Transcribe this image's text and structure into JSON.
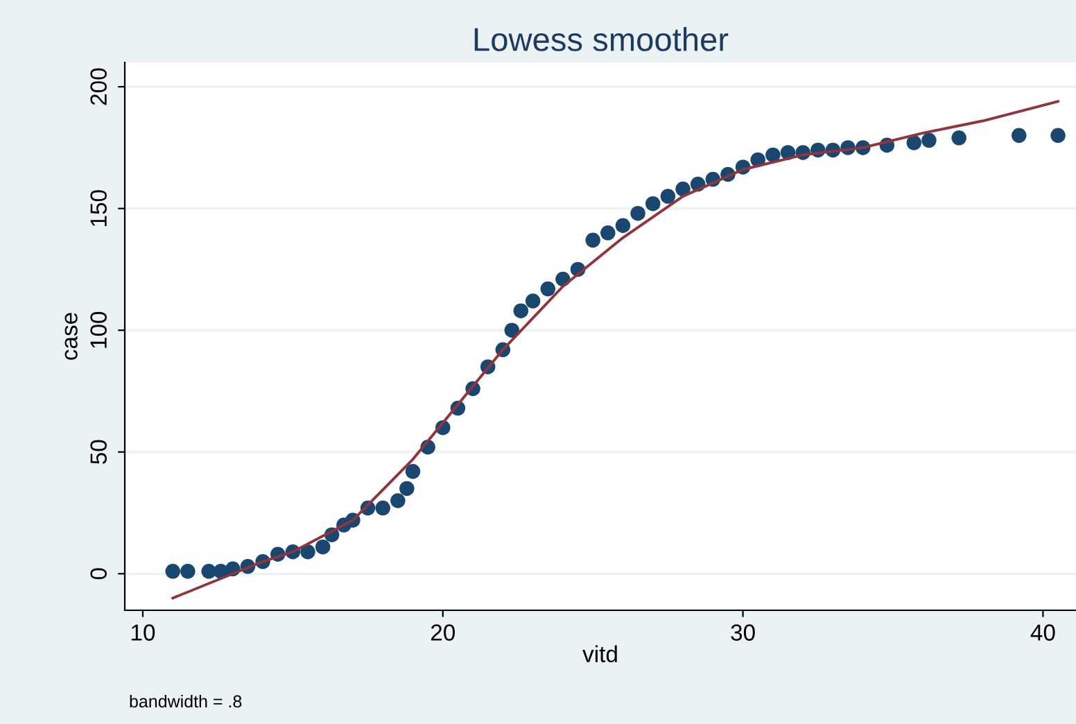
{
  "chart_data": {
    "type": "scatter",
    "title": "Lowess smoother",
    "xlabel": "vitd",
    "ylabel": "case",
    "xlim": [
      9.4,
      41.1
    ],
    "ylim": [
      -15,
      210
    ],
    "xticks": [
      10,
      20,
      30,
      40
    ],
    "yticks": [
      0,
      50,
      100,
      150,
      200
    ],
    "grid": "y",
    "marker": "circle",
    "legend": false,
    "annotations": [
      "bandwidth = .8"
    ],
    "series": [
      {
        "color": "#1a476f",
        "x": [
          11,
          11.5,
          12.2,
          12.6,
          13,
          13.5,
          14,
          14.5,
          15,
          15.5,
          16,
          16.3,
          16.7,
          17,
          17.5,
          18,
          18.5,
          18.8,
          19,
          19.5,
          20,
          20.5,
          21,
          21.5,
          22,
          22.3,
          22.6,
          23,
          23.5,
          24,
          24.5,
          25,
          25.5,
          26,
          26.5,
          27,
          27.5,
          28,
          28.5,
          29,
          29.5,
          30,
          30.5,
          31,
          31.5,
          32,
          32.5,
          33,
          33.5,
          34,
          34.8,
          35.7,
          36.2,
          37.2,
          39.2,
          40.5
        ],
        "values": [
          1,
          1,
          1,
          1,
          2,
          3,
          5,
          8,
          9,
          9,
          11,
          16,
          20,
          22,
          27,
          27,
          30,
          35,
          42,
          52,
          60,
          68,
          76,
          85,
          92,
          100,
          108,
          112,
          117,
          121,
          125,
          137,
          140,
          143,
          148,
          152,
          155,
          158,
          160,
          162,
          164,
          167,
          170,
          172,
          173,
          173,
          174,
          174,
          175,
          175,
          176,
          177,
          178,
          179,
          180,
          180
        ]
      },
      {
        "type": "line",
        "color": "#90353b",
        "marker": "none",
        "x": [
          11,
          14,
          15,
          17,
          19,
          20,
          22,
          24,
          26,
          28,
          30,
          32,
          34,
          36,
          38,
          40.5
        ],
        "values": [
          -10,
          5,
          9,
          22,
          47,
          62,
          92,
          118,
          138,
          155,
          166,
          172,
          175,
          181,
          186,
          194
        ]
      }
    ]
  }
}
